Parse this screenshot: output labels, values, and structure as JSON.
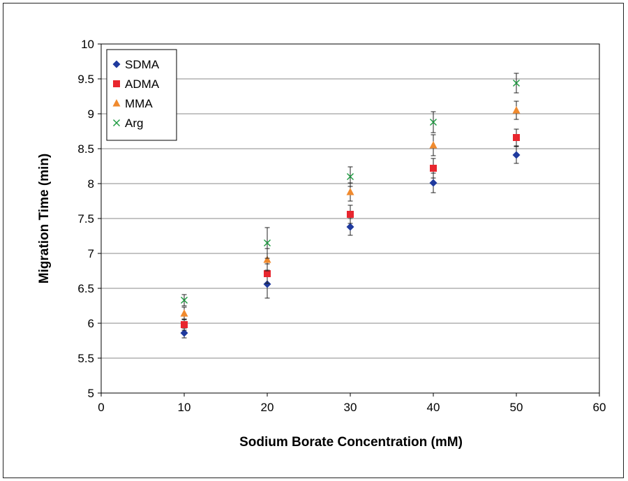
{
  "chart_data": {
    "type": "scatter",
    "title": "",
    "xlabel": "Sodium Borate Concentration (mM)",
    "ylabel": "Migration Time (min)",
    "xlim": [
      0,
      60
    ],
    "ylim": [
      5,
      10
    ],
    "x_ticks": [
      "0",
      "10",
      "20",
      "30",
      "40",
      "50",
      "60"
    ],
    "y_ticks": [
      "5",
      "5.5",
      "6",
      "6.5",
      "7",
      "7.5",
      "8",
      "8.5",
      "9",
      "9.5",
      "10"
    ],
    "grid": "horizontal",
    "legend_position": "top-left",
    "x": [
      10,
      20,
      30,
      40,
      50
    ],
    "series": [
      {
        "name": "SDMA",
        "marker": "diamond",
        "color": "#1f3a9e",
        "values": [
          5.86,
          6.56,
          7.38,
          8.01,
          8.41
        ],
        "errors": [
          0.07,
          0.2,
          0.12,
          0.14,
          0.12
        ]
      },
      {
        "name": "ADMA",
        "marker": "square",
        "color": "#e8262e",
        "values": [
          5.98,
          6.71,
          7.56,
          8.22,
          8.66
        ],
        "errors": [
          0.08,
          0.14,
          0.13,
          0.14,
          0.12
        ]
      },
      {
        "name": "MMA",
        "marker": "triangle",
        "color": "#f08a2e",
        "values": [
          6.14,
          6.91,
          7.88,
          8.55,
          9.05
        ],
        "errors": [
          0.09,
          0.16,
          0.13,
          0.15,
          0.13
        ]
      },
      {
        "name": "Arg",
        "marker": "x",
        "color": "#1a9a3e",
        "values": [
          6.33,
          7.15,
          8.1,
          8.88,
          9.44
        ],
        "errors": [
          0.08,
          0.22,
          0.14,
          0.15,
          0.14
        ]
      }
    ]
  }
}
